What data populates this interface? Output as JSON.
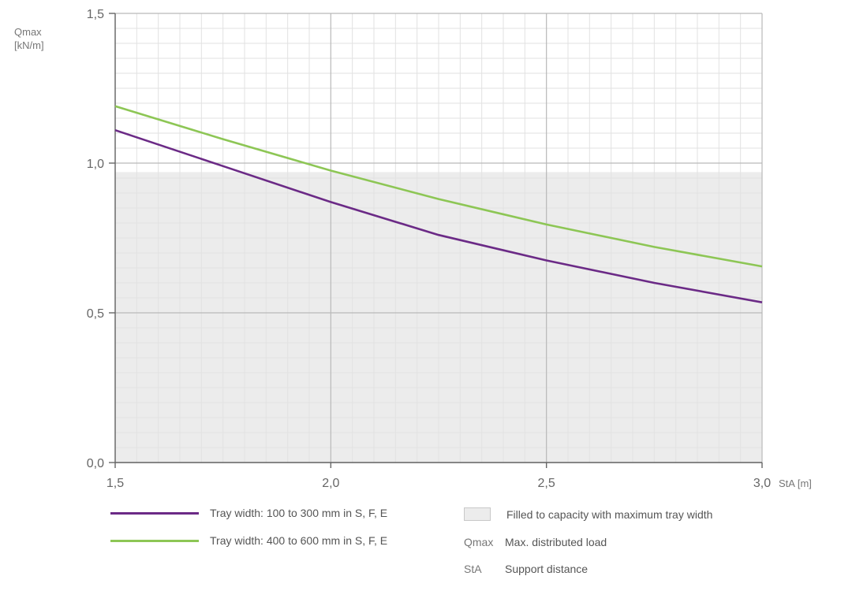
{
  "chart_data": {
    "type": "line",
    "x_unit_label": "StA [m]",
    "y_label_line1": "Qmax",
    "y_label_line2": "[kN/m]",
    "xlim": [
      1.5,
      3.0
    ],
    "ylim": [
      0.0,
      1.5
    ],
    "x_ticks": [
      "1,5",
      "2,0",
      "2,5",
      "3,0"
    ],
    "x_tick_values": [
      1.5,
      2.0,
      2.5,
      3.0
    ],
    "y_ticks": [
      "0,0",
      "0,5",
      "1,0",
      "1,5"
    ],
    "y_tick_values": [
      0.0,
      0.5,
      1.0,
      1.5
    ],
    "grid": true,
    "shaded_region": {
      "y_max": 0.97,
      "color": "#ececec"
    },
    "series": [
      {
        "name": "Tray width: 100 to 300 mm in S, F, E",
        "color": "#6b2a86",
        "x": [
          1.5,
          1.75,
          2.0,
          2.25,
          2.5,
          2.75,
          3.0
        ],
        "y": [
          1.11,
          0.99,
          0.87,
          0.76,
          0.675,
          0.6,
          0.535
        ]
      },
      {
        "name": "Tray width: 400 to 600 mm in S, F, E",
        "color": "#8dc655",
        "x": [
          1.5,
          1.75,
          2.0,
          2.25,
          2.5,
          2.75,
          3.0
        ],
        "y": [
          1.19,
          1.08,
          0.975,
          0.88,
          0.795,
          0.72,
          0.655
        ]
      }
    ]
  },
  "legend": {
    "series1_label": "Tray width: 100 to 300 mm in S, F, E",
    "series2_label": "Tray width: 400 to 600 mm in S, F, E",
    "fill_label": "Filled to capacity with maximum tray width",
    "qmax_abbr": "Qmax",
    "qmax_desc": "Max. distributed load",
    "sta_abbr": "StA",
    "sta_desc": "Support distance"
  }
}
